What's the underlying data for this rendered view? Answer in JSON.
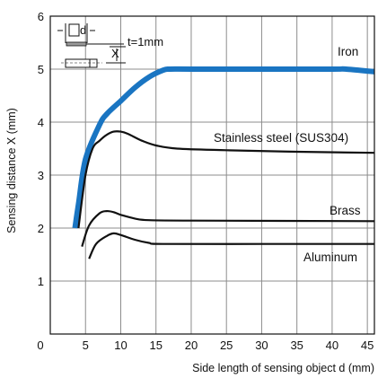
{
  "chart_data": {
    "type": "line",
    "title": "",
    "xlabel": "Side length of sensing object d (mm)",
    "ylabel": "Sensing distance X (mm)",
    "xlim": [
      0,
      46
    ],
    "ylim": [
      0,
      6
    ],
    "xticks": [
      5,
      10,
      15,
      20,
      25,
      30,
      35,
      40,
      45
    ],
    "yticks": [
      1,
      2,
      3,
      4,
      5,
      6
    ],
    "origin_label": "0",
    "grid": true,
    "series": [
      {
        "name": "Iron",
        "color": "#1a75c2",
        "points": [
          [
            3.5,
            2.0
          ],
          [
            4,
            2.45
          ],
          [
            5,
            3.3
          ],
          [
            7,
            3.95
          ],
          [
            8,
            4.15
          ],
          [
            10,
            4.4
          ],
          [
            12,
            4.65
          ],
          [
            14,
            4.85
          ],
          [
            16,
            4.98
          ],
          [
            17,
            5.0
          ],
          [
            20,
            5.0
          ],
          [
            30,
            5.0
          ],
          [
            40,
            5.0
          ],
          [
            42,
            5.0
          ],
          [
            46,
            4.95
          ]
        ]
      },
      {
        "name": "Stainless steel (SUS304)",
        "color": "#111111",
        "points": [
          [
            4.0,
            2.0
          ],
          [
            5,
            3.0
          ],
          [
            6,
            3.5
          ],
          [
            7,
            3.65
          ],
          [
            8,
            3.76
          ],
          [
            9,
            3.82
          ],
          [
            10,
            3.82
          ],
          [
            11,
            3.78
          ],
          [
            13,
            3.65
          ],
          [
            15,
            3.56
          ],
          [
            18,
            3.5
          ],
          [
            25,
            3.47
          ],
          [
            35,
            3.44
          ],
          [
            46,
            3.42
          ]
        ]
      },
      {
        "name": "Brass",
        "color": "#111111",
        "points": [
          [
            4.5,
            1.65
          ],
          [
            5.5,
            2.05
          ],
          [
            7,
            2.28
          ],
          [
            8,
            2.32
          ],
          [
            9,
            2.3
          ],
          [
            10,
            2.25
          ],
          [
            12,
            2.18
          ],
          [
            14,
            2.15
          ],
          [
            20,
            2.14
          ],
          [
            46,
            2.13
          ]
        ]
      },
      {
        "name": "Aluminum",
        "color": "#111111",
        "points": [
          [
            5.5,
            1.42
          ],
          [
            6.5,
            1.7
          ],
          [
            8,
            1.85
          ],
          [
            9,
            1.9
          ],
          [
            10,
            1.87
          ],
          [
            12,
            1.78
          ],
          [
            14,
            1.72
          ],
          [
            16,
            1.7
          ],
          [
            30,
            1.7
          ],
          [
            46,
            1.7
          ]
        ]
      }
    ],
    "inset": {
      "d_label": "d",
      "x_label": "X",
      "t_label": "t=1mm"
    }
  }
}
